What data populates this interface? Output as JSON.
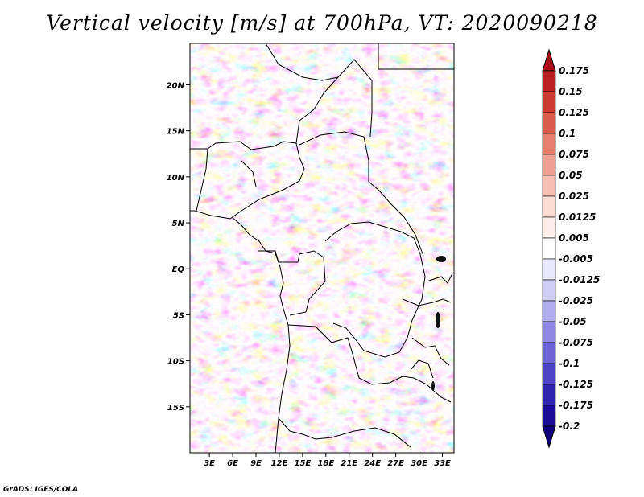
{
  "title": "Vertical velocity [m/s] at 700hPa, VT: 2020090218",
  "credit": "GrADS: IGES/COLA",
  "map": {
    "lon_labels": [
      "3E",
      "6E",
      "9E",
      "12E",
      "15E",
      "18E",
      "21E",
      "24E",
      "27E",
      "30E",
      "33E"
    ],
    "lat_labels": [
      "20N",
      "15N",
      "10N",
      "5N",
      "EQ",
      "5S",
      "10S",
      "15S"
    ],
    "lon_values": [
      3,
      6,
      9,
      12,
      15,
      18,
      21,
      24,
      27,
      30,
      33
    ],
    "lat_values": [
      20,
      15,
      10,
      5,
      0,
      -5,
      -10,
      -15
    ],
    "lon_range": [
      0.5,
      34.5
    ],
    "lat_range": [
      -20,
      24.5
    ]
  },
  "colorbar": {
    "labels": [
      "0.175",
      "0.15",
      "0.125",
      "0.1",
      "0.075",
      "0.05",
      "0.025",
      "0.0125",
      "0.005",
      "-0.005",
      "-0.0125",
      "-0.025",
      "-0.05",
      "-0.075",
      "-0.1",
      "-0.125",
      "-0.175",
      "-0.2"
    ],
    "colors": [
      "#a50f15",
      "#bb1f23",
      "#cb3a33",
      "#db5b4d",
      "#e57e6e",
      "#eea192",
      "#f5c0b3",
      "#fadcd4",
      "#fdeeea",
      "#ffffff",
      "#eae9fb",
      "#cfcdf4",
      "#b0aced",
      "#8f89e3",
      "#6c64d6",
      "#4b42c6",
      "#2e24b0",
      "#1a0c99",
      "#0f0080"
    ]
  }
}
